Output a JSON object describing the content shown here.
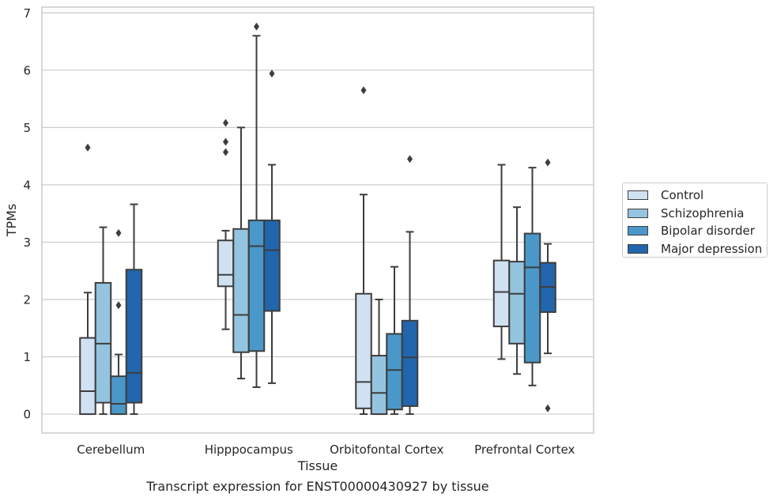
{
  "chart_data": {
    "type": "boxplot",
    "title": "",
    "caption": "Transcript expression for ENST00000430927 by tissue",
    "xlabel": "Tissue",
    "ylabel": "TPMs",
    "ylim": [
      -0.33,
      7.1
    ],
    "yticks": [
      "0",
      "1",
      "2",
      "3",
      "4",
      "5",
      "6",
      "7"
    ],
    "categories": [
      "Cerebellum",
      "Hipppocampus",
      "Orbitofontal Cortex",
      "Prefrontal Cortex"
    ],
    "grid": true,
    "legend_position": "right",
    "series": [
      {
        "name": "Control",
        "color": "#d0e1f2",
        "boxes": [
          {
            "min": 0.0,
            "q1": 0.0,
            "median": 0.4,
            "q3": 1.33,
            "max": 2.12,
            "outliers": [
              4.65
            ]
          },
          {
            "min": 1.48,
            "q1": 2.23,
            "median": 2.43,
            "q3": 3.03,
            "max": 3.2,
            "outliers": [
              5.08,
              4.75,
              4.57
            ]
          },
          {
            "min": 0.0,
            "q1": 0.1,
            "median": 0.56,
            "q3": 2.1,
            "max": 3.83,
            "outliers": [
              5.65
            ]
          },
          {
            "min": 0.96,
            "q1": 1.53,
            "median": 2.13,
            "q3": 2.68,
            "max": 4.35,
            "outliers": []
          }
        ]
      },
      {
        "name": "Schizophrenia",
        "color": "#94c4df",
        "boxes": [
          {
            "min": 0.0,
            "q1": 0.2,
            "median": 1.23,
            "q3": 2.29,
            "max": 3.26,
            "outliers": []
          },
          {
            "min": 0.62,
            "q1": 1.08,
            "median": 1.73,
            "q3": 3.23,
            "max": 5.0,
            "outliers": []
          },
          {
            "min": 0.0,
            "q1": 0.0,
            "median": 0.37,
            "q3": 1.02,
            "max": 2.0,
            "outliers": []
          },
          {
            "min": 0.7,
            "q1": 1.23,
            "median": 2.1,
            "q3": 2.66,
            "max": 3.61,
            "outliers": []
          }
        ]
      },
      {
        "name": "Bipolar disorder",
        "color": "#4a98c9",
        "boxes": [
          {
            "min": 0.0,
            "q1": 0.0,
            "median": 0.18,
            "q3": 0.66,
            "max": 1.04,
            "outliers": [
              3.16,
              1.9
            ]
          },
          {
            "min": 0.47,
            "q1": 1.1,
            "median": 2.93,
            "q3": 3.38,
            "max": 6.6,
            "outliers": [
              6.76
            ]
          },
          {
            "min": 0.0,
            "q1": 0.08,
            "median": 0.77,
            "q3": 1.4,
            "max": 2.57,
            "outliers": []
          },
          {
            "min": 0.5,
            "q1": 0.9,
            "median": 2.56,
            "q3": 3.15,
            "max": 4.3,
            "outliers": []
          }
        ]
      },
      {
        "name": "Major depression",
        "color": "#2166ac",
        "boxes": [
          {
            "min": 0.0,
            "q1": 0.2,
            "median": 0.72,
            "q3": 2.52,
            "max": 3.66,
            "outliers": []
          },
          {
            "min": 0.54,
            "q1": 1.8,
            "median": 2.86,
            "q3": 3.38,
            "max": 4.35,
            "outliers": [
              5.94
            ]
          },
          {
            "min": 0.0,
            "q1": 0.14,
            "median": 0.99,
            "q3": 1.63,
            "max": 3.18,
            "outliers": [
              4.45
            ]
          },
          {
            "min": 1.06,
            "q1": 1.78,
            "median": 2.22,
            "q3": 2.64,
            "max": 2.97,
            "outliers": [
              4.39,
              0.1
            ]
          }
        ]
      }
    ]
  }
}
